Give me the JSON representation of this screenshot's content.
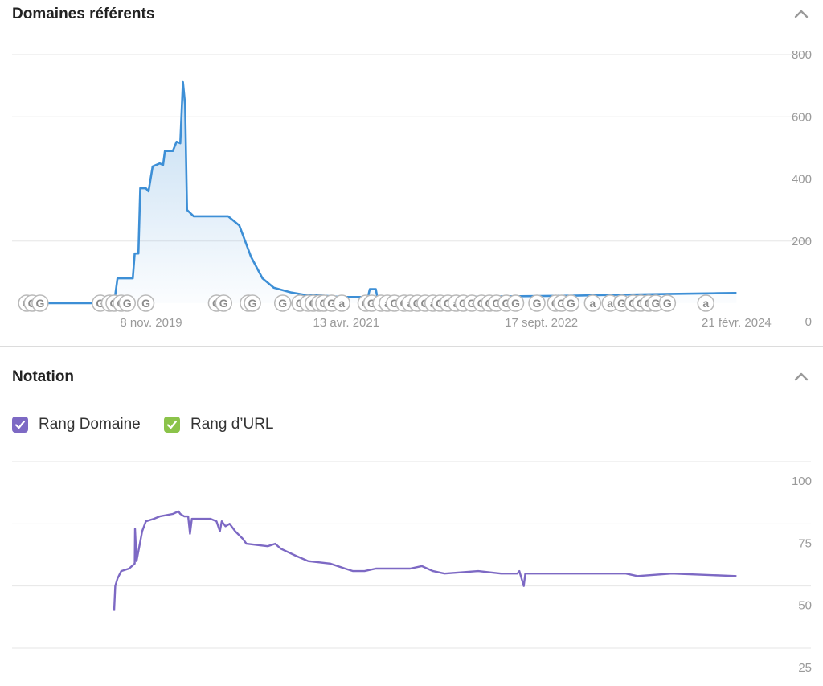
{
  "panels": {
    "referring_domains": {
      "title": "Domaines référents"
    },
    "rating": {
      "title": "Notation",
      "legend": [
        {
          "label": "Rang Domaine",
          "color": "#7d69c4",
          "checked": true
        },
        {
          "label": "Rang d’URL",
          "color": "#8bc34a",
          "checked": true
        }
      ]
    }
  },
  "icons": {
    "collapse": "chevron-up-icon",
    "checkbox": "check-icon"
  },
  "chart_data": [
    {
      "type": "area",
      "title": "Domaines référents",
      "color": "#3d8fd6",
      "ylim": [
        0,
        800
      ],
      "yticks": [
        0,
        200,
        400,
        600,
        800
      ],
      "xlim": [
        "2018-11-01",
        "2024-04-01"
      ],
      "xticks": [
        {
          "date": "2019-11-08",
          "label": "8 nov. 2019"
        },
        {
          "date": "2021-04-13",
          "label": "13 avr. 2021"
        },
        {
          "date": "2022-09-17",
          "label": "17 sept. 2022"
        },
        {
          "date": "2024-02-21",
          "label": "21 févr. 2024"
        }
      ],
      "series": [
        {
          "points": [
            [
              "2018-12-01",
              0
            ],
            [
              "2019-08-01",
              0
            ],
            [
              "2019-08-10",
              80
            ],
            [
              "2019-09-20",
              80
            ],
            [
              "2019-09-25",
              160
            ],
            [
              "2019-10-05",
              160
            ],
            [
              "2019-10-10",
              370
            ],
            [
              "2019-10-25",
              370
            ],
            [
              "2019-11-01",
              360
            ],
            [
              "2019-11-12",
              440
            ],
            [
              "2019-12-01",
              450
            ],
            [
              "2019-12-10",
              445
            ],
            [
              "2019-12-15",
              490
            ],
            [
              "2020-01-05",
              490
            ],
            [
              "2020-01-15",
              520
            ],
            [
              "2020-01-25",
              515
            ],
            [
              "2020-02-01",
              712
            ],
            [
              "2020-02-07",
              640
            ],
            [
              "2020-02-12",
              300
            ],
            [
              "2020-03-01",
              280
            ],
            [
              "2020-04-15",
              280
            ],
            [
              "2020-05-20",
              280
            ],
            [
              "2020-06-01",
              280
            ],
            [
              "2020-07-01",
              250
            ],
            [
              "2020-08-01",
              150
            ],
            [
              "2020-09-01",
              80
            ],
            [
              "2020-10-01",
              50
            ],
            [
              "2020-11-15",
              35
            ],
            [
              "2021-01-01",
              25
            ],
            [
              "2021-02-01",
              25
            ],
            [
              "2021-04-01",
              20
            ],
            [
              "2021-06-10",
              20
            ],
            [
              "2021-06-15",
              45
            ],
            [
              "2021-07-01",
              45
            ],
            [
              "2021-07-05",
              20
            ],
            [
              "2022-01-01",
              20
            ],
            [
              "2022-06-01",
              22
            ],
            [
              "2022-12-01",
              24
            ],
            [
              "2023-04-01",
              27
            ],
            [
              "2023-09-01",
              30
            ],
            [
              "2024-01-01",
              32
            ],
            [
              "2024-02-21",
              33
            ]
          ]
        }
      ],
      "annotations": [
        {
          "date": "2018-12-10",
          "label": "G"
        },
        {
          "date": "2018-12-25",
          "label": "G"
        },
        {
          "date": "2019-01-15",
          "label": "G"
        },
        {
          "date": "2019-06-25",
          "label": "G"
        },
        {
          "date": "2019-07-20",
          "label": "G"
        },
        {
          "date": "2019-08-01",
          "label": "G"
        },
        {
          "date": "2019-08-20",
          "label": "G"
        },
        {
          "date": "2019-09-05",
          "label": "G"
        },
        {
          "date": "2019-10-25",
          "label": "G"
        },
        {
          "date": "2020-05-01",
          "label": "G"
        },
        {
          "date": "2020-05-20",
          "label": "G"
        },
        {
          "date": "2020-07-25",
          "label": "G"
        },
        {
          "date": "2020-08-05",
          "label": "G"
        },
        {
          "date": "2020-10-25",
          "label": "G"
        },
        {
          "date": "2020-12-10",
          "label": "G"
        },
        {
          "date": "2021-01-01",
          "label": "a"
        },
        {
          "date": "2021-01-15",
          "label": "G"
        },
        {
          "date": "2021-02-01",
          "label": "a"
        },
        {
          "date": "2021-02-12",
          "label": "G"
        },
        {
          "date": "2021-03-05",
          "label": "G"
        },
        {
          "date": "2021-04-01",
          "label": "a"
        },
        {
          "date": "2021-06-05",
          "label": "G"
        },
        {
          "date": "2021-06-20",
          "label": "G"
        },
        {
          "date": "2021-07-15",
          "label": "a"
        },
        {
          "date": "2021-08-01",
          "label": "a"
        },
        {
          "date": "2021-08-20",
          "label": "G"
        },
        {
          "date": "2021-09-15",
          "label": "G"
        },
        {
          "date": "2021-10-01",
          "label": "a"
        },
        {
          "date": "2021-10-20",
          "label": "G"
        },
        {
          "date": "2021-11-10",
          "label": "G"
        },
        {
          "date": "2021-12-01",
          "label": "a"
        },
        {
          "date": "2021-12-20",
          "label": "G"
        },
        {
          "date": "2022-01-10",
          "label": "G"
        },
        {
          "date": "2022-02-01",
          "label": "a"
        },
        {
          "date": "2022-02-20",
          "label": "G"
        },
        {
          "date": "2022-03-15",
          "label": "G"
        },
        {
          "date": "2022-04-10",
          "label": "G"
        },
        {
          "date": "2022-05-01",
          "label": "G"
        },
        {
          "date": "2022-05-20",
          "label": "G"
        },
        {
          "date": "2022-06-15",
          "label": "G"
        },
        {
          "date": "2022-07-10",
          "label": "G"
        },
        {
          "date": "2022-09-05",
          "label": "G"
        },
        {
          "date": "2022-10-25",
          "label": "G"
        },
        {
          "date": "2022-11-10",
          "label": "G"
        },
        {
          "date": "2022-12-05",
          "label": "G"
        },
        {
          "date": "2023-02-01",
          "label": "a"
        },
        {
          "date": "2023-03-20",
          "label": "a"
        },
        {
          "date": "2023-04-20",
          "label": "G"
        },
        {
          "date": "2023-05-20",
          "label": "G"
        },
        {
          "date": "2023-06-10",
          "label": "G"
        },
        {
          "date": "2023-07-01",
          "label": "G"
        },
        {
          "date": "2023-07-20",
          "label": "G"
        },
        {
          "date": "2023-08-20",
          "label": "G"
        },
        {
          "date": "2023-12-01",
          "label": "a"
        }
      ]
    },
    {
      "type": "line",
      "title": "Notation",
      "color": "#7d69c4",
      "ylim": [
        25,
        100
      ],
      "yticks": [
        25,
        50,
        75,
        100
      ],
      "xlim": [
        "2018-11-01",
        "2024-04-01"
      ],
      "series": [
        {
          "name": "Rang Domaine",
          "points": [
            [
              "2019-08-01",
              40
            ],
            [
              "2019-08-04",
              50
            ],
            [
              "2019-08-10",
              53
            ],
            [
              "2019-08-20",
              56
            ],
            [
              "2019-09-10",
              57
            ],
            [
              "2019-09-25",
              59
            ],
            [
              "2019-09-26",
              73
            ],
            [
              "2019-09-30",
              60
            ],
            [
              "2019-10-15",
              72
            ],
            [
              "2019-10-25",
              76
            ],
            [
              "2019-11-15",
              77
            ],
            [
              "2019-12-01",
              78
            ],
            [
              "2020-01-05",
              79
            ],
            [
              "2020-01-20",
              80
            ],
            [
              "2020-01-25",
              79
            ],
            [
              "2020-02-05",
              78
            ],
            [
              "2020-02-15",
              78
            ],
            [
              "2020-02-20",
              71
            ],
            [
              "2020-02-25",
              77
            ],
            [
              "2020-04-15",
              77
            ],
            [
              "2020-05-01",
              76
            ],
            [
              "2020-05-10",
              72
            ],
            [
              "2020-05-15",
              76
            ],
            [
              "2020-05-25",
              74
            ],
            [
              "2020-06-05",
              75
            ],
            [
              "2020-06-20",
              72
            ],
            [
              "2020-07-10",
              69
            ],
            [
              "2020-07-20",
              67
            ],
            [
              "2020-09-15",
              66
            ],
            [
              "2020-10-05",
              67
            ],
            [
              "2020-10-20",
              65
            ],
            [
              "2020-12-01",
              62
            ],
            [
              "2021-01-01",
              60
            ],
            [
              "2021-03-01",
              59
            ],
            [
              "2021-04-10",
              57
            ],
            [
              "2021-05-01",
              56
            ],
            [
              "2021-06-01",
              56
            ],
            [
              "2021-07-01",
              57
            ],
            [
              "2021-10-01",
              57
            ],
            [
              "2021-11-01",
              58
            ],
            [
              "2021-12-01",
              56
            ],
            [
              "2022-01-01",
              55
            ],
            [
              "2022-04-01",
              56
            ],
            [
              "2022-06-01",
              55
            ],
            [
              "2022-07-15",
              55
            ],
            [
              "2022-07-20",
              56
            ],
            [
              "2022-08-01",
              50
            ],
            [
              "2022-08-05",
              55
            ],
            [
              "2023-01-01",
              55
            ],
            [
              "2023-05-01",
              55
            ],
            [
              "2023-06-01",
              54
            ],
            [
              "2023-09-01",
              55
            ],
            [
              "2024-02-21",
              54
            ]
          ]
        }
      ]
    }
  ]
}
